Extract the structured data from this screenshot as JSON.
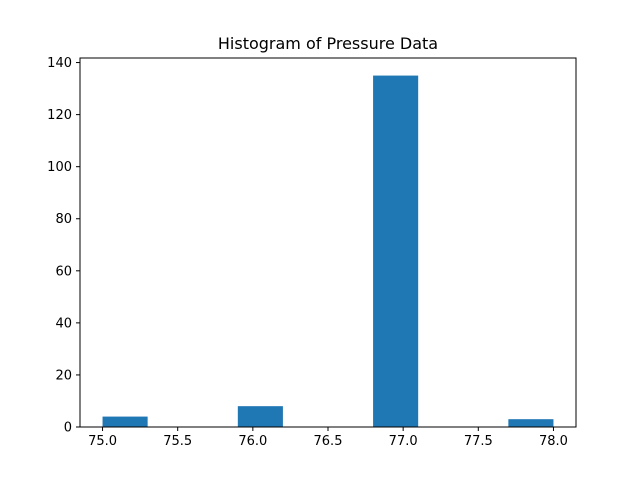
{
  "chart_data": {
    "type": "bar",
    "title": "Histogram of Pressure Data",
    "xlabel": "",
    "ylabel": "",
    "bar_color": "#1f77b4",
    "bins": [
      {
        "start": 75.0,
        "end": 75.3,
        "count": 4
      },
      {
        "start": 75.3,
        "end": 75.6,
        "count": 0
      },
      {
        "start": 75.6,
        "end": 75.9,
        "count": 0
      },
      {
        "start": 75.9,
        "end": 76.2,
        "count": 8
      },
      {
        "start": 76.2,
        "end": 76.5,
        "count": 0
      },
      {
        "start": 76.5,
        "end": 76.8,
        "count": 0
      },
      {
        "start": 76.8,
        "end": 77.1,
        "count": 135
      },
      {
        "start": 77.1,
        "end": 77.4,
        "count": 0
      },
      {
        "start": 77.4,
        "end": 77.7,
        "count": 0
      },
      {
        "start": 77.7,
        "end": 78.0,
        "count": 3
      }
    ],
    "xlim": [
      74.85,
      78.15
    ],
    "ylim": [
      0,
      141.75
    ],
    "x_ticks": [
      75.0,
      75.5,
      76.0,
      76.5,
      77.0,
      77.5,
      78.0
    ],
    "x_tick_labels": [
      "75.0",
      "75.5",
      "76.0",
      "76.5",
      "77.0",
      "77.5",
      "78.0"
    ],
    "y_ticks": [
      0,
      20,
      40,
      60,
      80,
      100,
      120,
      140
    ],
    "y_tick_labels": [
      "0",
      "20",
      "40",
      "60",
      "80",
      "100",
      "120",
      "140"
    ],
    "grid": false,
    "legend": "none"
  }
}
